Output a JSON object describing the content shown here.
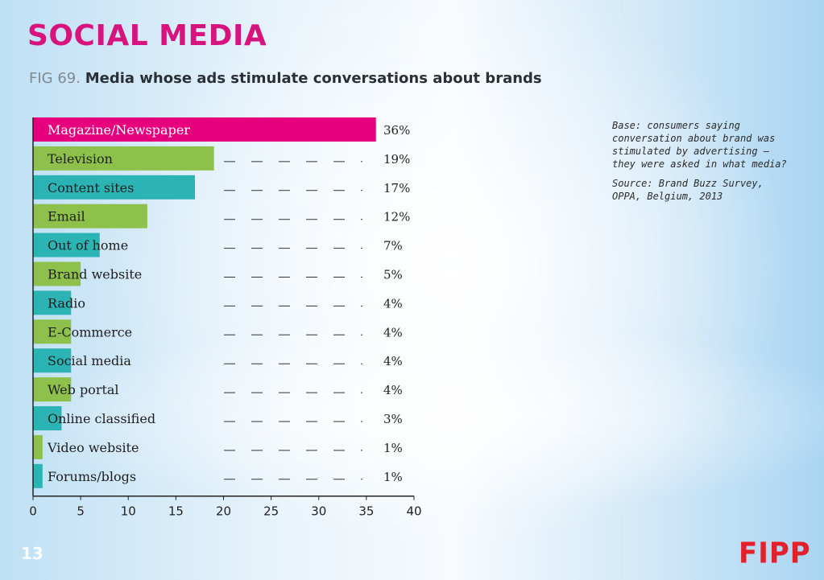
{
  "header": {
    "title": "SOCIAL MEDIA",
    "fig_number": "FIG 69.",
    "fig_title": "Media whose ads stimulate conversations about brands"
  },
  "notes": {
    "base": "Base: consumers saying conversation about brand was stimulated by advertising – they were asked in what media?",
    "source": "Source: Brand Buzz Survey, OPPA, Belgium, 2013"
  },
  "footer": {
    "page_number": "13",
    "logo_text": "FIPP"
  },
  "colors": {
    "highlight": "#e6007e",
    "green": "#8dc14b",
    "teal": "#2cb3b3",
    "title": "#d7147e"
  },
  "chart_data": {
    "type": "bar",
    "orientation": "horizontal",
    "categories": [
      "Magazine/Newspaper",
      "Television",
      "Content sites",
      "Email",
      "Out of home",
      "Brand website",
      "Radio",
      "E-Commerce",
      "Social media",
      "Web portal",
      "Online classified",
      "Video website",
      "Forums/blogs"
    ],
    "values": [
      36,
      19,
      17,
      12,
      7,
      5,
      4,
      4,
      4,
      4,
      3,
      1,
      1
    ],
    "value_labels": [
      "36%",
      "19%",
      "17%",
      "12%",
      "7%",
      "5%",
      "4%",
      "4%",
      "4%",
      "4%",
      "3%",
      "1%",
      "1%"
    ],
    "bar_colors": [
      "highlight",
      "green",
      "teal",
      "green",
      "teal",
      "green",
      "teal",
      "green",
      "teal",
      "green",
      "teal",
      "green",
      "teal"
    ],
    "xlim": [
      0,
      40
    ],
    "xticks": [
      "0",
      "5",
      "10",
      "15",
      "20",
      "25",
      "30",
      "35",
      "40"
    ],
    "grid": false
  }
}
